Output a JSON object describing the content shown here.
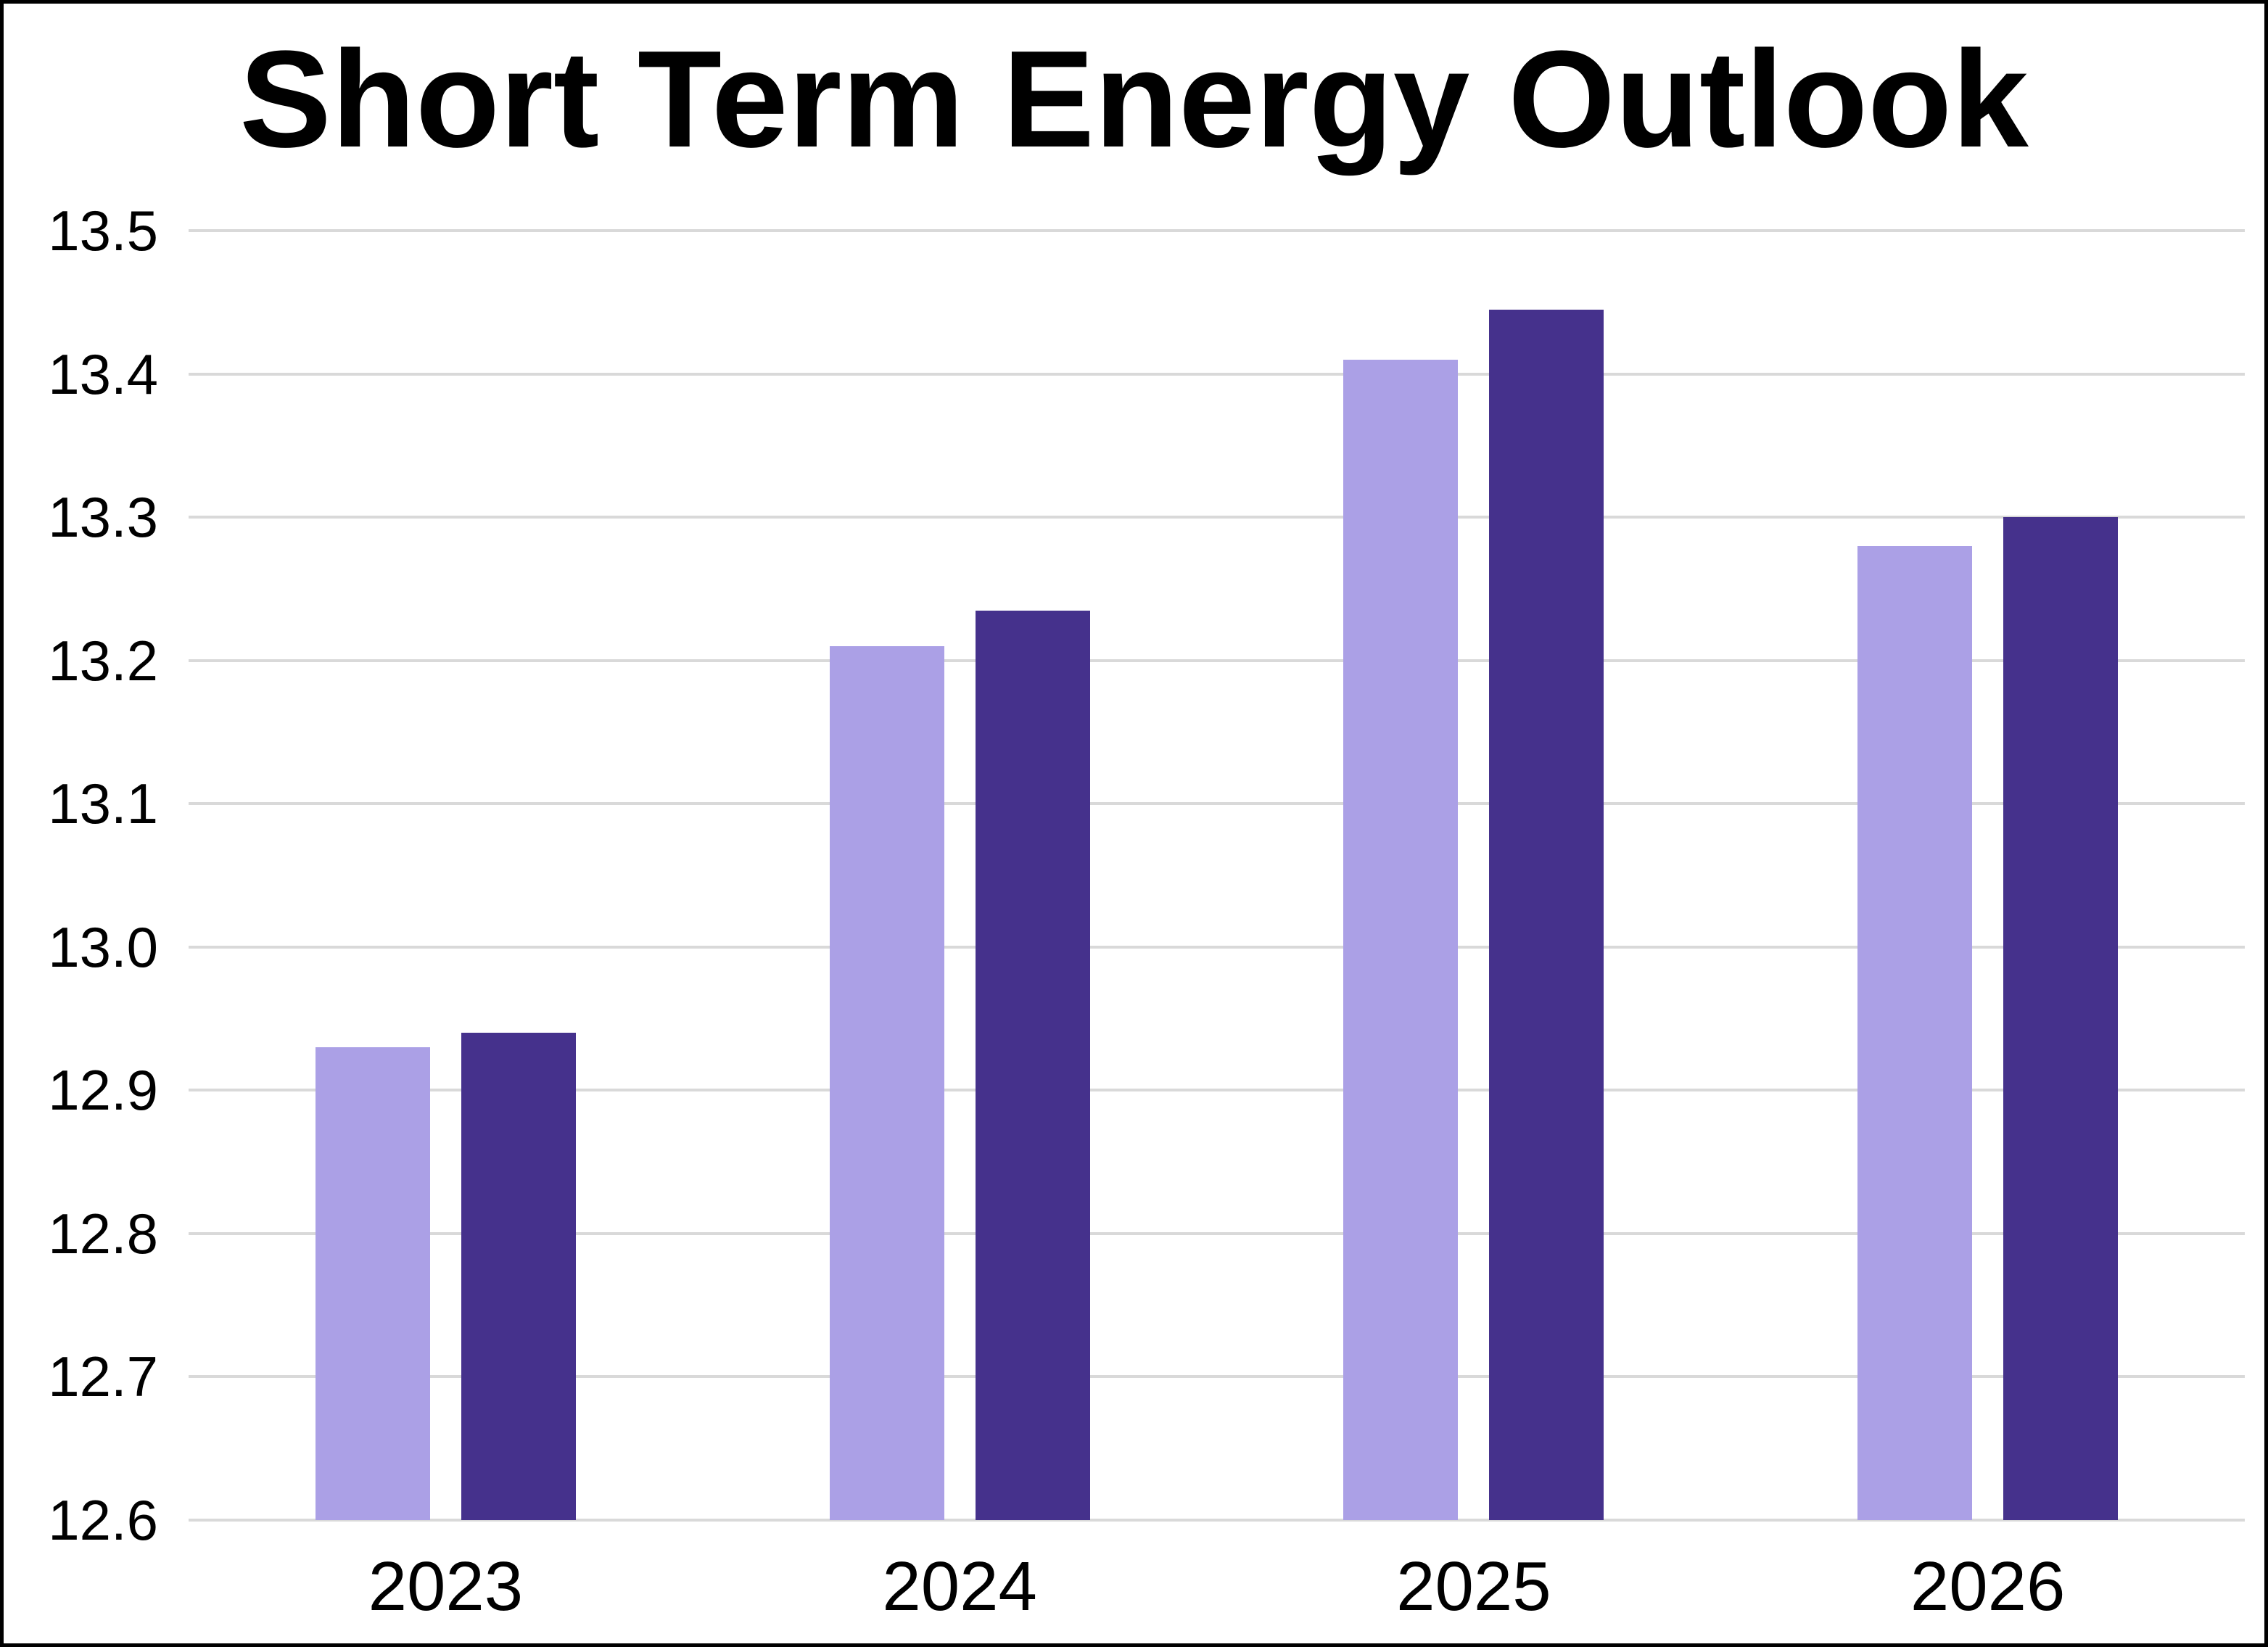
{
  "page": {
    "background": "#ffffff",
    "frame_color": "#000000"
  },
  "chart_data": {
    "type": "bar",
    "title": "Short Term Energy Outlook",
    "categories": [
      "2023",
      "2024",
      "2025",
      "2026"
    ],
    "series": [
      {
        "name": "light-purple-series",
        "color": "#aba0e6",
        "values": [
          12.93,
          13.21,
          13.41,
          13.28
        ]
      },
      {
        "name": "dark-purple-series",
        "color": "#45318c",
        "values": [
          12.94,
          13.235,
          13.445,
          13.3
        ]
      }
    ],
    "xlabel": "",
    "ylabel": "",
    "ylim": [
      12.6,
      13.5
    ],
    "ytick_step": 0.1,
    "yticks": [
      13.5,
      13.4,
      13.3,
      13.2,
      13.1,
      13.0,
      12.9,
      12.8,
      12.7,
      12.6
    ],
    "ytick_labels": [
      "13.5",
      "13.4",
      "13.3",
      "13.2",
      "13.1",
      "13.0",
      "12.9",
      "12.8",
      "12.7",
      "12.6"
    ],
    "grid": true,
    "gridline_color": "#d9d9d9",
    "legend": false,
    "text_color": "#000000"
  }
}
